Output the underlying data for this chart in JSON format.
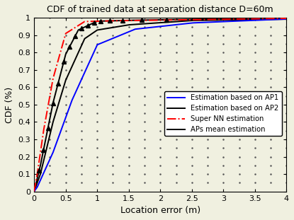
{
  "title": "CDF of trained data at separation distance D=60m",
  "xlabel": "Location error (m)",
  "ylabel": "CDF (%)",
  "xlim": [
    0,
    4
  ],
  "ylim": [
    0,
    1
  ],
  "xtick_vals": [
    0,
    0.5,
    1,
    1.5,
    2,
    2.5,
    3,
    3.5,
    4
  ],
  "xtick_labels": [
    "0",
    "0.5",
    "1",
    "1.5",
    "2",
    "2.5",
    "3",
    "3.5",
    "4"
  ],
  "ytick_vals": [
    0,
    0.1,
    0.2,
    0.3,
    0.4,
    0.5,
    0.6,
    0.7,
    0.8,
    0.9,
    1
  ],
  "ytick_labels": [
    "0",
    "0.1",
    "0.2",
    "0.3",
    "0.4",
    "0.5",
    "0.6",
    "0.7",
    "0.8",
    "0.9",
    "1"
  ],
  "legend_labels": [
    "Estimation based on AP1",
    "Estimation based on AP2",
    "Super NN estimation",
    "APs mean estimation"
  ],
  "ap1_color": "#0000ff",
  "ap2_color": "#000000",
  "nn_color": "#ff0000",
  "mean_color": "#000000",
  "bg_color": "#f0f0e0"
}
